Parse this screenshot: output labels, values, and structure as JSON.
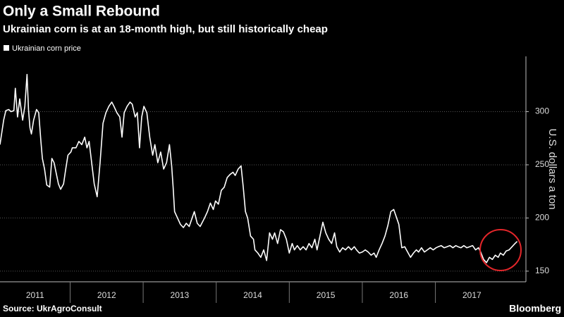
{
  "chart_data": {
    "type": "line",
    "title": "Only a Small Rebound",
    "subtitle": "Ukrainian corn is at an 18-month high, but still historically cheap",
    "y_label": "U.S. dollars a ton",
    "source": "Source: UkrAgroConsult",
    "logo": "Bloomberg",
    "x": [
      2011.04,
      2011.09,
      2011.12,
      2011.16,
      2011.19,
      2011.23,
      2011.25,
      2011.28,
      2011.31,
      2011.35,
      2011.38,
      2011.41,
      2011.43,
      2011.45,
      2011.47,
      2011.5,
      2011.54,
      2011.57,
      2011.6,
      2011.62,
      2011.65,
      2011.68,
      2011.72,
      2011.75,
      2011.78,
      2011.81,
      2011.84,
      2011.87,
      2011.91,
      2011.94,
      2011.97,
      2012.01,
      2012.03,
      2012.08,
      2012.12,
      2012.16,
      2012.2,
      2012.23,
      2012.26,
      2012.3,
      2012.33,
      2012.37,
      2012.41,
      2012.45,
      2012.49,
      2012.53,
      2012.57,
      2012.6,
      2012.64,
      2012.68,
      2012.71,
      2012.74,
      2012.78,
      2012.82,
      2012.85,
      2012.89,
      2012.92,
      2012.95,
      2012.98,
      2013.01,
      2013.05,
      2013.09,
      2013.13,
      2013.16,
      2013.2,
      2013.24,
      2013.28,
      2013.32,
      2013.36,
      2013.39,
      2013.41,
      2013.43,
      2013.47,
      2013.51,
      2013.55,
      2013.59,
      2013.63,
      2013.67,
      2013.7,
      2013.74,
      2013.78,
      2013.84,
      2013.88,
      2013.92,
      2013.96,
      2013.99,
      2014.03,
      2014.07,
      2014.11,
      2014.15,
      2014.19,
      2014.23,
      2014.26,
      2014.3,
      2014.34,
      2014.37,
      2014.4,
      2014.43,
      2014.47,
      2014.51,
      2014.53,
      2014.57,
      2014.61,
      2014.65,
      2014.69,
      2014.73,
      2014.77,
      2014.8,
      2014.84,
      2014.88,
      2014.92,
      2014.96,
      2015.0,
      2015.04,
      2015.07,
      2015.11,
      2015.15,
      2015.19,
      2015.23,
      2015.27,
      2015.31,
      2015.35,
      2015.38,
      2015.42,
      2015.46,
      2015.5,
      2015.54,
      2015.58,
      2015.62,
      2015.65,
      2015.69,
      2015.73,
      2015.77,
      2015.81,
      2015.85,
      2015.89,
      2015.92,
      2015.96,
      2016.0,
      2016.04,
      2016.08,
      2016.12,
      2016.16,
      2016.19,
      2016.23,
      2016.27,
      2016.31,
      2016.35,
      2016.39,
      2016.43,
      2016.47,
      2016.5,
      2016.54,
      2016.58,
      2016.62,
      2016.66,
      2016.7,
      2016.74,
      2016.77,
      2016.81,
      2016.85,
      2016.89,
      2016.93,
      2016.97,
      2017.01,
      2017.04,
      2017.08,
      2017.12,
      2017.16,
      2017.2,
      2017.24,
      2017.28,
      2017.31,
      2017.35,
      2017.39,
      2017.43,
      2017.47,
      2017.51,
      2017.55,
      2017.59,
      2017.62,
      2017.66,
      2017.7,
      2017.74,
      2017.78,
      2017.82,
      2017.86,
      2017.89,
      2017.93,
      2017.97,
      2018.01,
      2018.05,
      2018.09,
      2018.12
    ],
    "series": [
      {
        "name": "Ukrainian corn price",
        "color": "#ffffff",
        "values": [
          269,
          292,
          301,
          302,
          300,
          301,
          322,
          295,
          312,
          292,
          305,
          335,
          302,
          285,
          279,
          292,
          302,
          299,
          272,
          256,
          246,
          231,
          229,
          256,
          252,
          242,
          232,
          227,
          232,
          246,
          259,
          262,
          266,
          266,
          272,
          269,
          276,
          266,
          272,
          249,
          232,
          220,
          252,
          289,
          299,
          305,
          309,
          305,
          299,
          295,
          276,
          299,
          305,
          309,
          307,
          295,
          299,
          266,
          295,
          305,
          299,
          276,
          259,
          269,
          252,
          262,
          246,
          252,
          269,
          249,
          229,
          206,
          200,
          194,
          191,
          195,
          192,
          200,
          206,
          195,
          192,
          200,
          206,
          214,
          208,
          216,
          213,
          226,
          229,
          238,
          241,
          243,
          240,
          246,
          249,
          229,
          206,
          200,
          183,
          180,
          170,
          167,
          163,
          170,
          160,
          186,
          180,
          186,
          176,
          189,
          187,
          180,
          167,
          176,
          170,
          174,
          170,
          173,
          170,
          176,
          172,
          180,
          170,
          183,
          196,
          186,
          180,
          176,
          186,
          173,
          168,
          172,
          170,
          173,
          170,
          173,
          170,
          167,
          168,
          170,
          168,
          165,
          167,
          163,
          170,
          176,
          183,
          193,
          206,
          208,
          200,
          194,
          172,
          173,
          168,
          163,
          167,
          170,
          168,
          172,
          168,
          170,
          172,
          170,
          172,
          173,
          174,
          172,
          173,
          174,
          172,
          174,
          173,
          172,
          174,
          172,
          173,
          174,
          170,
          172,
          168,
          161,
          158,
          163,
          161,
          165,
          163,
          167,
          165,
          169,
          170,
          173,
          176,
          178
        ]
      }
    ],
    "xlim": [
      2011.04,
      2018.23
    ],
    "xticks": [
      2011,
      2012,
      2013,
      2014,
      2015,
      2016,
      2017
    ],
    "ylim": [
      140,
      352
    ],
    "yticks": [
      150,
      200,
      250,
      300
    ],
    "grid": true
  }
}
